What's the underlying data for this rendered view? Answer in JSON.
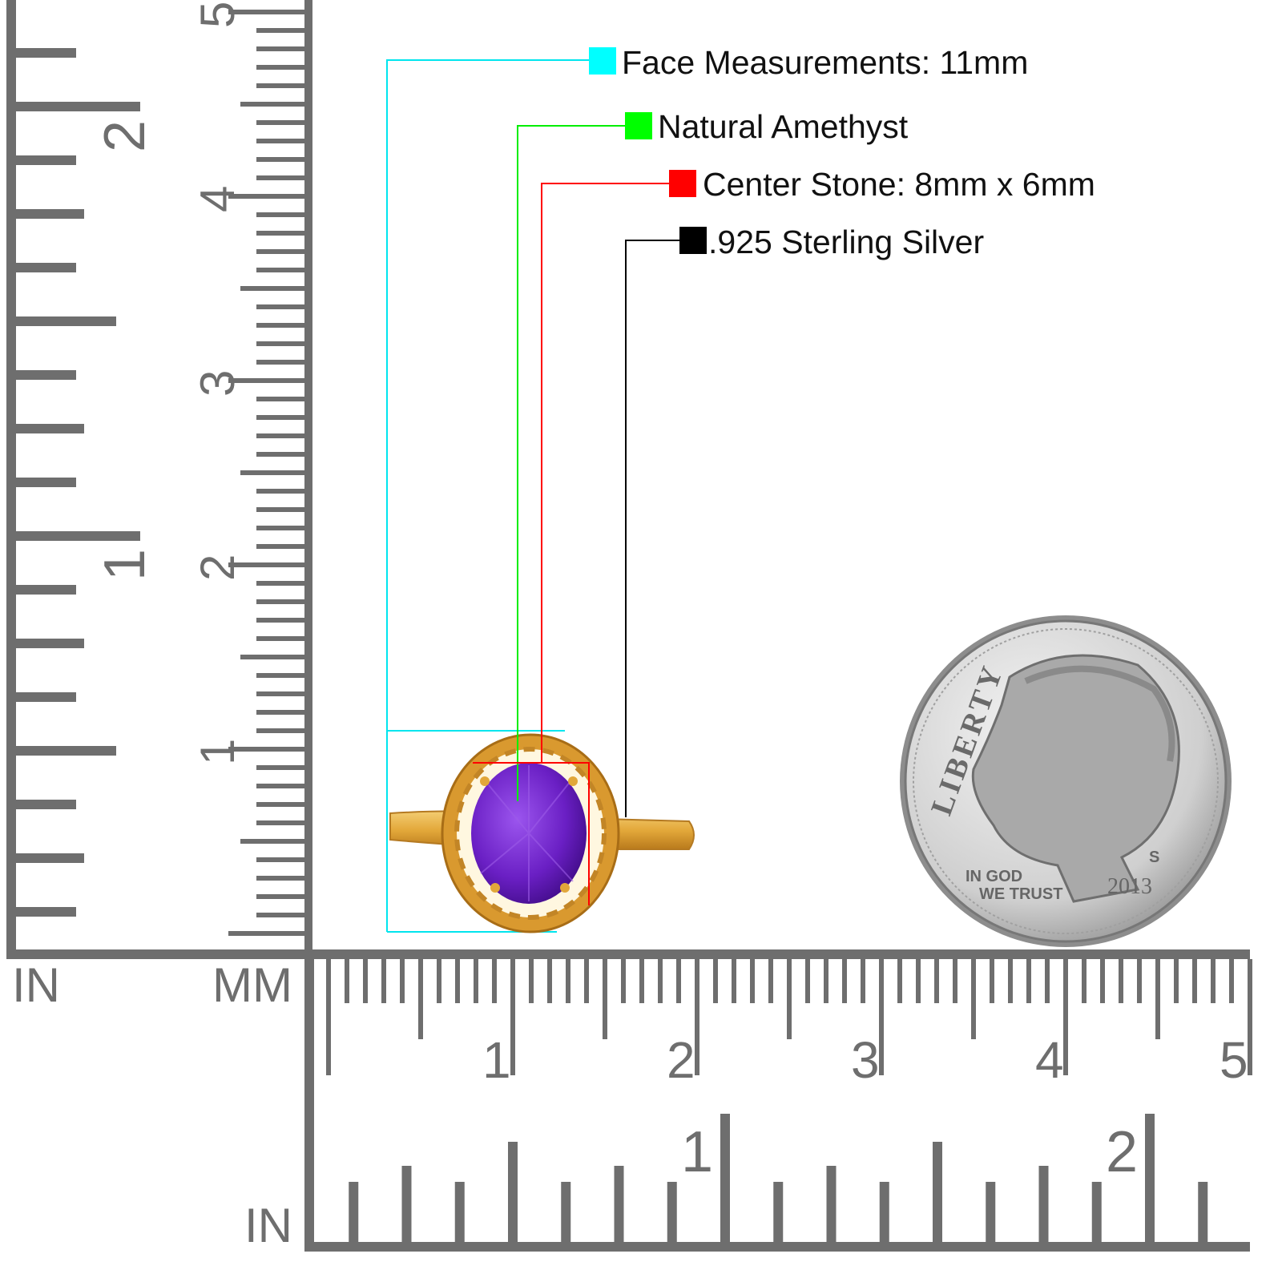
{
  "callouts": [
    {
      "text": "Face Measurements: 11mm",
      "color": "#00ffff"
    },
    {
      "text": "Natural Amethyst",
      "color": "#00ff00"
    },
    {
      "text": "Center Stone: 8mm x 6mm",
      "color": "#ff0000"
    },
    {
      "text": ".925 Sterling Silver",
      "color": "#000000"
    }
  ],
  "rulers": {
    "left_in_label": "IN",
    "left_mm_label": "MM",
    "bottom_in_label": "IN",
    "left_cm_numbers": [
      "1",
      "2",
      "3",
      "4",
      "5"
    ],
    "left_inch_numbers": [
      "1",
      "2"
    ],
    "bottom_cm_numbers": [
      "1",
      "2",
      "3",
      "4",
      "5"
    ],
    "bottom_inch_numbers": [
      "1",
      "2"
    ],
    "color": "#6e6e6e"
  },
  "coin": {
    "motto_top": "LIBERTY",
    "motto_bottom_1": "IN GOD",
    "motto_bottom_2": "WE TRUST",
    "year": "2013",
    "mint_mark": "S"
  },
  "ring": {
    "stone_color": "#6a1fc4",
    "metal_color": "#e3a83a"
  }
}
